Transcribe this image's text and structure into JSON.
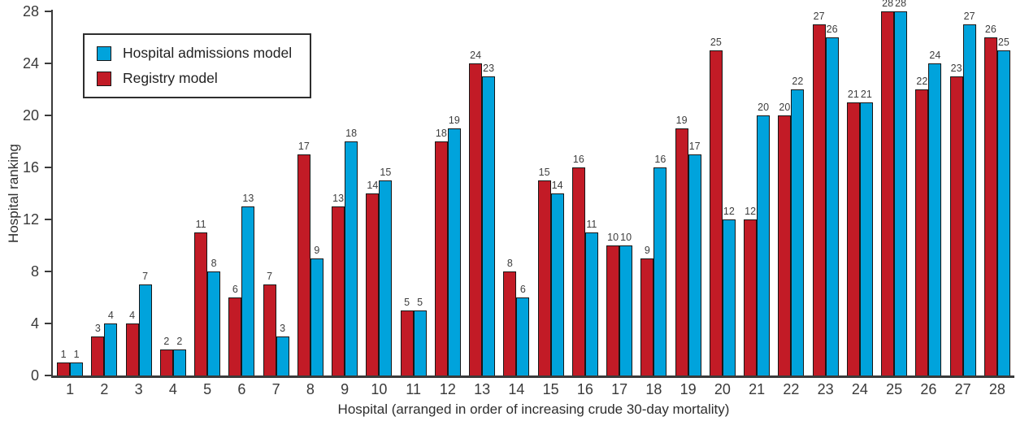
{
  "figure": {
    "background": "#ffffff",
    "axis_color": "#3a3a3a"
  },
  "chart_data": {
    "type": "bar",
    "title": "",
    "xlabel": "Hospital (arranged in order of increasing crude 30-day mortality)",
    "ylabel": "Hospital ranking",
    "categories": [
      "1",
      "2",
      "3",
      "4",
      "5",
      "6",
      "7",
      "8",
      "9",
      "10",
      "11",
      "12",
      "13",
      "14",
      "15",
      "16",
      "17",
      "18",
      "19",
      "20",
      "21",
      "22",
      "23",
      "24",
      "25",
      "26",
      "27",
      "28"
    ],
    "series": [
      {
        "name": "Registry model",
        "color": "#C21B26",
        "values": [
          1,
          3,
          4,
          2,
          11,
          6,
          7,
          17,
          13,
          14,
          5,
          18,
          24,
          8,
          15,
          16,
          10,
          9,
          19,
          25,
          12,
          20,
          27,
          21,
          28,
          22,
          23,
          26
        ]
      },
      {
        "name": "Hospital admissions model",
        "color": "#00A3DC",
        "values": [
          1,
          4,
          7,
          2,
          8,
          13,
          3,
          9,
          18,
          15,
          5,
          19,
          23,
          6,
          14,
          11,
          10,
          16,
          17,
          12,
          20,
          22,
          26,
          21,
          28,
          24,
          27,
          25
        ]
      }
    ],
    "legend_order": [
      "Hospital admissions model",
      "Registry model"
    ],
    "legend_position": "top-left",
    "ylim": [
      0,
      28
    ],
    "yticks": [
      0,
      4,
      8,
      12,
      16,
      20,
      24,
      28
    ],
    "grid": false,
    "bar_value_labels": true
  }
}
